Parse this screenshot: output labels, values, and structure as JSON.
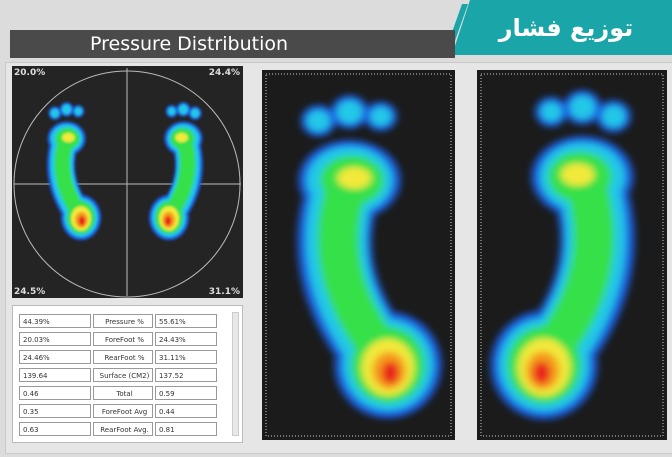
{
  "header": {
    "title": "Pressure Distribution",
    "badge": "توزیع فشار"
  },
  "quadrants": {
    "top_left": "20.0%",
    "top_right": "24.4%",
    "bottom_left": "24.5%",
    "bottom_right": "31.1%"
  },
  "table": {
    "rows": [
      [
        "44.39%",
        "Pressure %",
        "55.61%"
      ],
      [
        "20.03%",
        "ForeFoot %",
        "24.43%"
      ],
      [
        "24.46%",
        "RearFoot %",
        "31.11%"
      ],
      [
        "139.64",
        "Surface (CM2)",
        "137.52"
      ],
      [
        "0.46",
        "Total Avg(Kg/CM",
        "0.59"
      ],
      [
        "0.35",
        "ForeFoot Avg",
        "0.44"
      ],
      [
        "0.63",
        "RearFoot Avg.",
        "0.81"
      ]
    ]
  }
}
